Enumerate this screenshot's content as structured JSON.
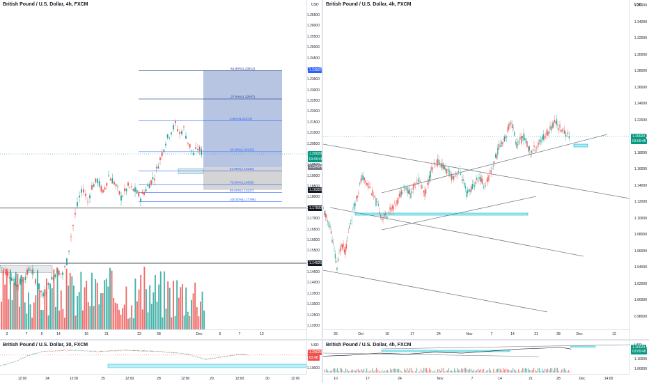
{
  "colors": {
    "up": "#26a69a",
    "down": "#ef5350",
    "target_zone": "#7b96cc",
    "stop_zone": "#b0b0b0",
    "fib_line": "#2962ff",
    "channel": "#787b86",
    "support": "#00bcd4",
    "price_green": "#089981",
    "price_dark": "#131722",
    "price_blue": "#2962ff"
  },
  "pane_top_left": {
    "title": "British Pound / U.S. Dollar, 4h, FXCM",
    "unit": "USD",
    "price_axis": [
      "1.26500",
      "1.26000",
      "1.25500",
      "1.25000",
      "1.24500",
      "1.24000",
      "1.23500",
      "1.23000",
      "1.22500",
      "1.22000",
      "1.21500",
      "1.21000",
      "1.20500",
      "1.20000",
      "1.19500",
      "1.19000",
      "1.18500",
      "1.18000",
      "1.17500",
      "1.17000",
      "1.16500",
      "1.16000",
      "1.15500",
      "1.15000",
      "1.14500",
      "1.14000",
      "1.13500",
      "1.13000",
      "1.12500",
      "1.12000"
    ],
    "time_axis": [
      "3",
      "7",
      "9",
      "14",
      "16",
      "21",
      "23",
      "28",
      "Dec",
      "5",
      "7",
      "12"
    ],
    "fib_levels": [
      {
        "label": "-61.80%(1.23912)",
        "value": 1.23912
      },
      {
        "label": "-27.00%(1.22597)",
        "value": 1.22597
      },
      {
        "label": "0.00%(1.21574)",
        "value": 1.21574
      },
      {
        "label": "38.20%(1.20132)",
        "value": 1.20132
      },
      {
        "label": "61.80%(1.19240)",
        "value": 1.1924
      },
      {
        "label": "78.60%(1.18605)",
        "value": 1.18605
      },
      {
        "label": "88.60%(1.18227)",
        "value": 1.18227
      },
      {
        "label": "100.00%(1.17796)",
        "value": 1.17796
      }
    ],
    "price_tags": [
      {
        "text": "1.23927",
        "value": 1.23927,
        "kind": "blue"
      },
      {
        "text": "1.20029",
        "value": 1.20029,
        "kind": "green"
      },
      {
        "text": "03:09:48",
        "value": 1.1977,
        "kind": "green"
      },
      {
        "text": "1.19404",
        "value": 1.19404,
        "kind": "gray"
      },
      {
        "text": "1.18352",
        "value": 1.18352,
        "kind": "dark"
      },
      {
        "text": "1.17500",
        "value": 1.175,
        "kind": "dark"
      },
      {
        "text": "1.14925",
        "value": 1.14925,
        "kind": "dark"
      }
    ],
    "hlines": [
      1.175,
      1.14925
    ]
  },
  "pane_top_right": {
    "title": "British Pound / U.S. Dollar, 4h, FXCM",
    "unit": "USD",
    "price_axis": [
      "1.36000",
      "1.34000",
      "1.32000",
      "1.30000",
      "1.28000",
      "1.26000",
      "1.24000",
      "1.22000",
      "1.20000",
      "1.18000",
      "1.16000",
      "1.14000",
      "1.12000",
      "1.10000",
      "1.08000",
      "1.06000",
      "1.04000",
      "1.02000",
      "1.00000",
      "0.98000"
    ],
    "time_axis": [
      "26",
      "Oct",
      "10",
      "17",
      "24",
      "Nov",
      "7",
      "14",
      "21",
      "28",
      "Dec",
      "12"
    ],
    "price_tags": [
      {
        "text": "1.20029",
        "value": 1.20029,
        "kind": "green"
      },
      {
        "text": "03:09:48",
        "value": 1.194,
        "kind": "green"
      }
    ]
  },
  "pane_bottom_left": {
    "title": "British Pound / U.S. Dollar, 30, FXCM",
    "unit": "USD",
    "price_axis": [
      "1.20000",
      "1.19000"
    ],
    "time_axis": [
      "12:00",
      "24",
      "12:00",
      "25",
      "12:00",
      "28",
      "12:00",
      "29",
      "12:00",
      "30",
      "12:00"
    ],
    "price_tags": [
      {
        "text": "1.20029",
        "kind": "red"
      },
      {
        "text": "03:48",
        "kind": "red"
      }
    ]
  },
  "pane_bottom_right": {
    "title": "British Pound / U.S. Dollar, 4h, FXCM",
    "unit": "USD",
    "price_axis": [
      "1.20000",
      "1.10000",
      "1.00000"
    ],
    "time_axis": [
      "10",
      "17",
      "24",
      "Nov",
      "7",
      "14",
      "21",
      "28",
      "Dec",
      "14:00"
    ],
    "price_tags": [
      {
        "text": "1.20029",
        "kind": "green"
      },
      {
        "text": "03:09:48",
        "kind": "green"
      }
    ]
  }
}
